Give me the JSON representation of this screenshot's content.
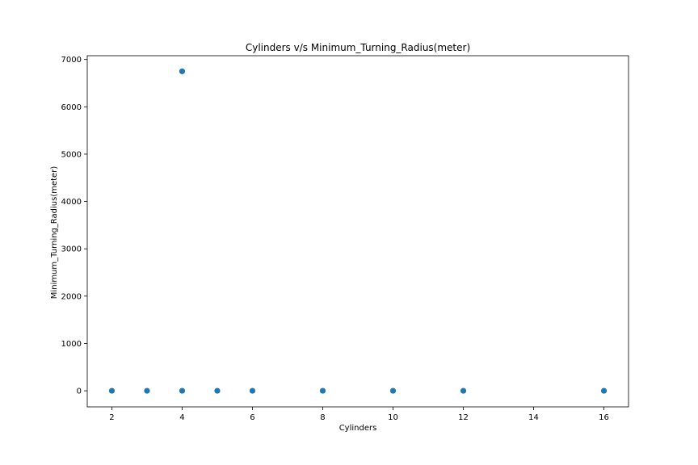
{
  "chart_data": {
    "type": "scatter",
    "title": "Cylinders v/s Minimum_Turning_Radius(meter)",
    "xlabel": "Cylinders",
    "ylabel": "Minimum_Turning_Radius(meter)",
    "xlim": [
      1.3,
      16.7
    ],
    "ylim": [
      -340,
      7080
    ],
    "xticks": [
      2,
      4,
      6,
      8,
      10,
      12,
      14,
      16
    ],
    "yticks": [
      0,
      1000,
      2000,
      3000,
      4000,
      5000,
      6000,
      7000
    ],
    "grid": false,
    "marker_color": "#1f77b4",
    "points": [
      {
        "x": 2,
        "y": 0
      },
      {
        "x": 3,
        "y": 0
      },
      {
        "x": 4,
        "y": 0
      },
      {
        "x": 4,
        "y": 6750
      },
      {
        "x": 5,
        "y": 0
      },
      {
        "x": 6,
        "y": 0
      },
      {
        "x": 8,
        "y": 0
      },
      {
        "x": 10,
        "y": 0
      },
      {
        "x": 12,
        "y": 0
      },
      {
        "x": 16,
        "y": 0
      }
    ]
  }
}
